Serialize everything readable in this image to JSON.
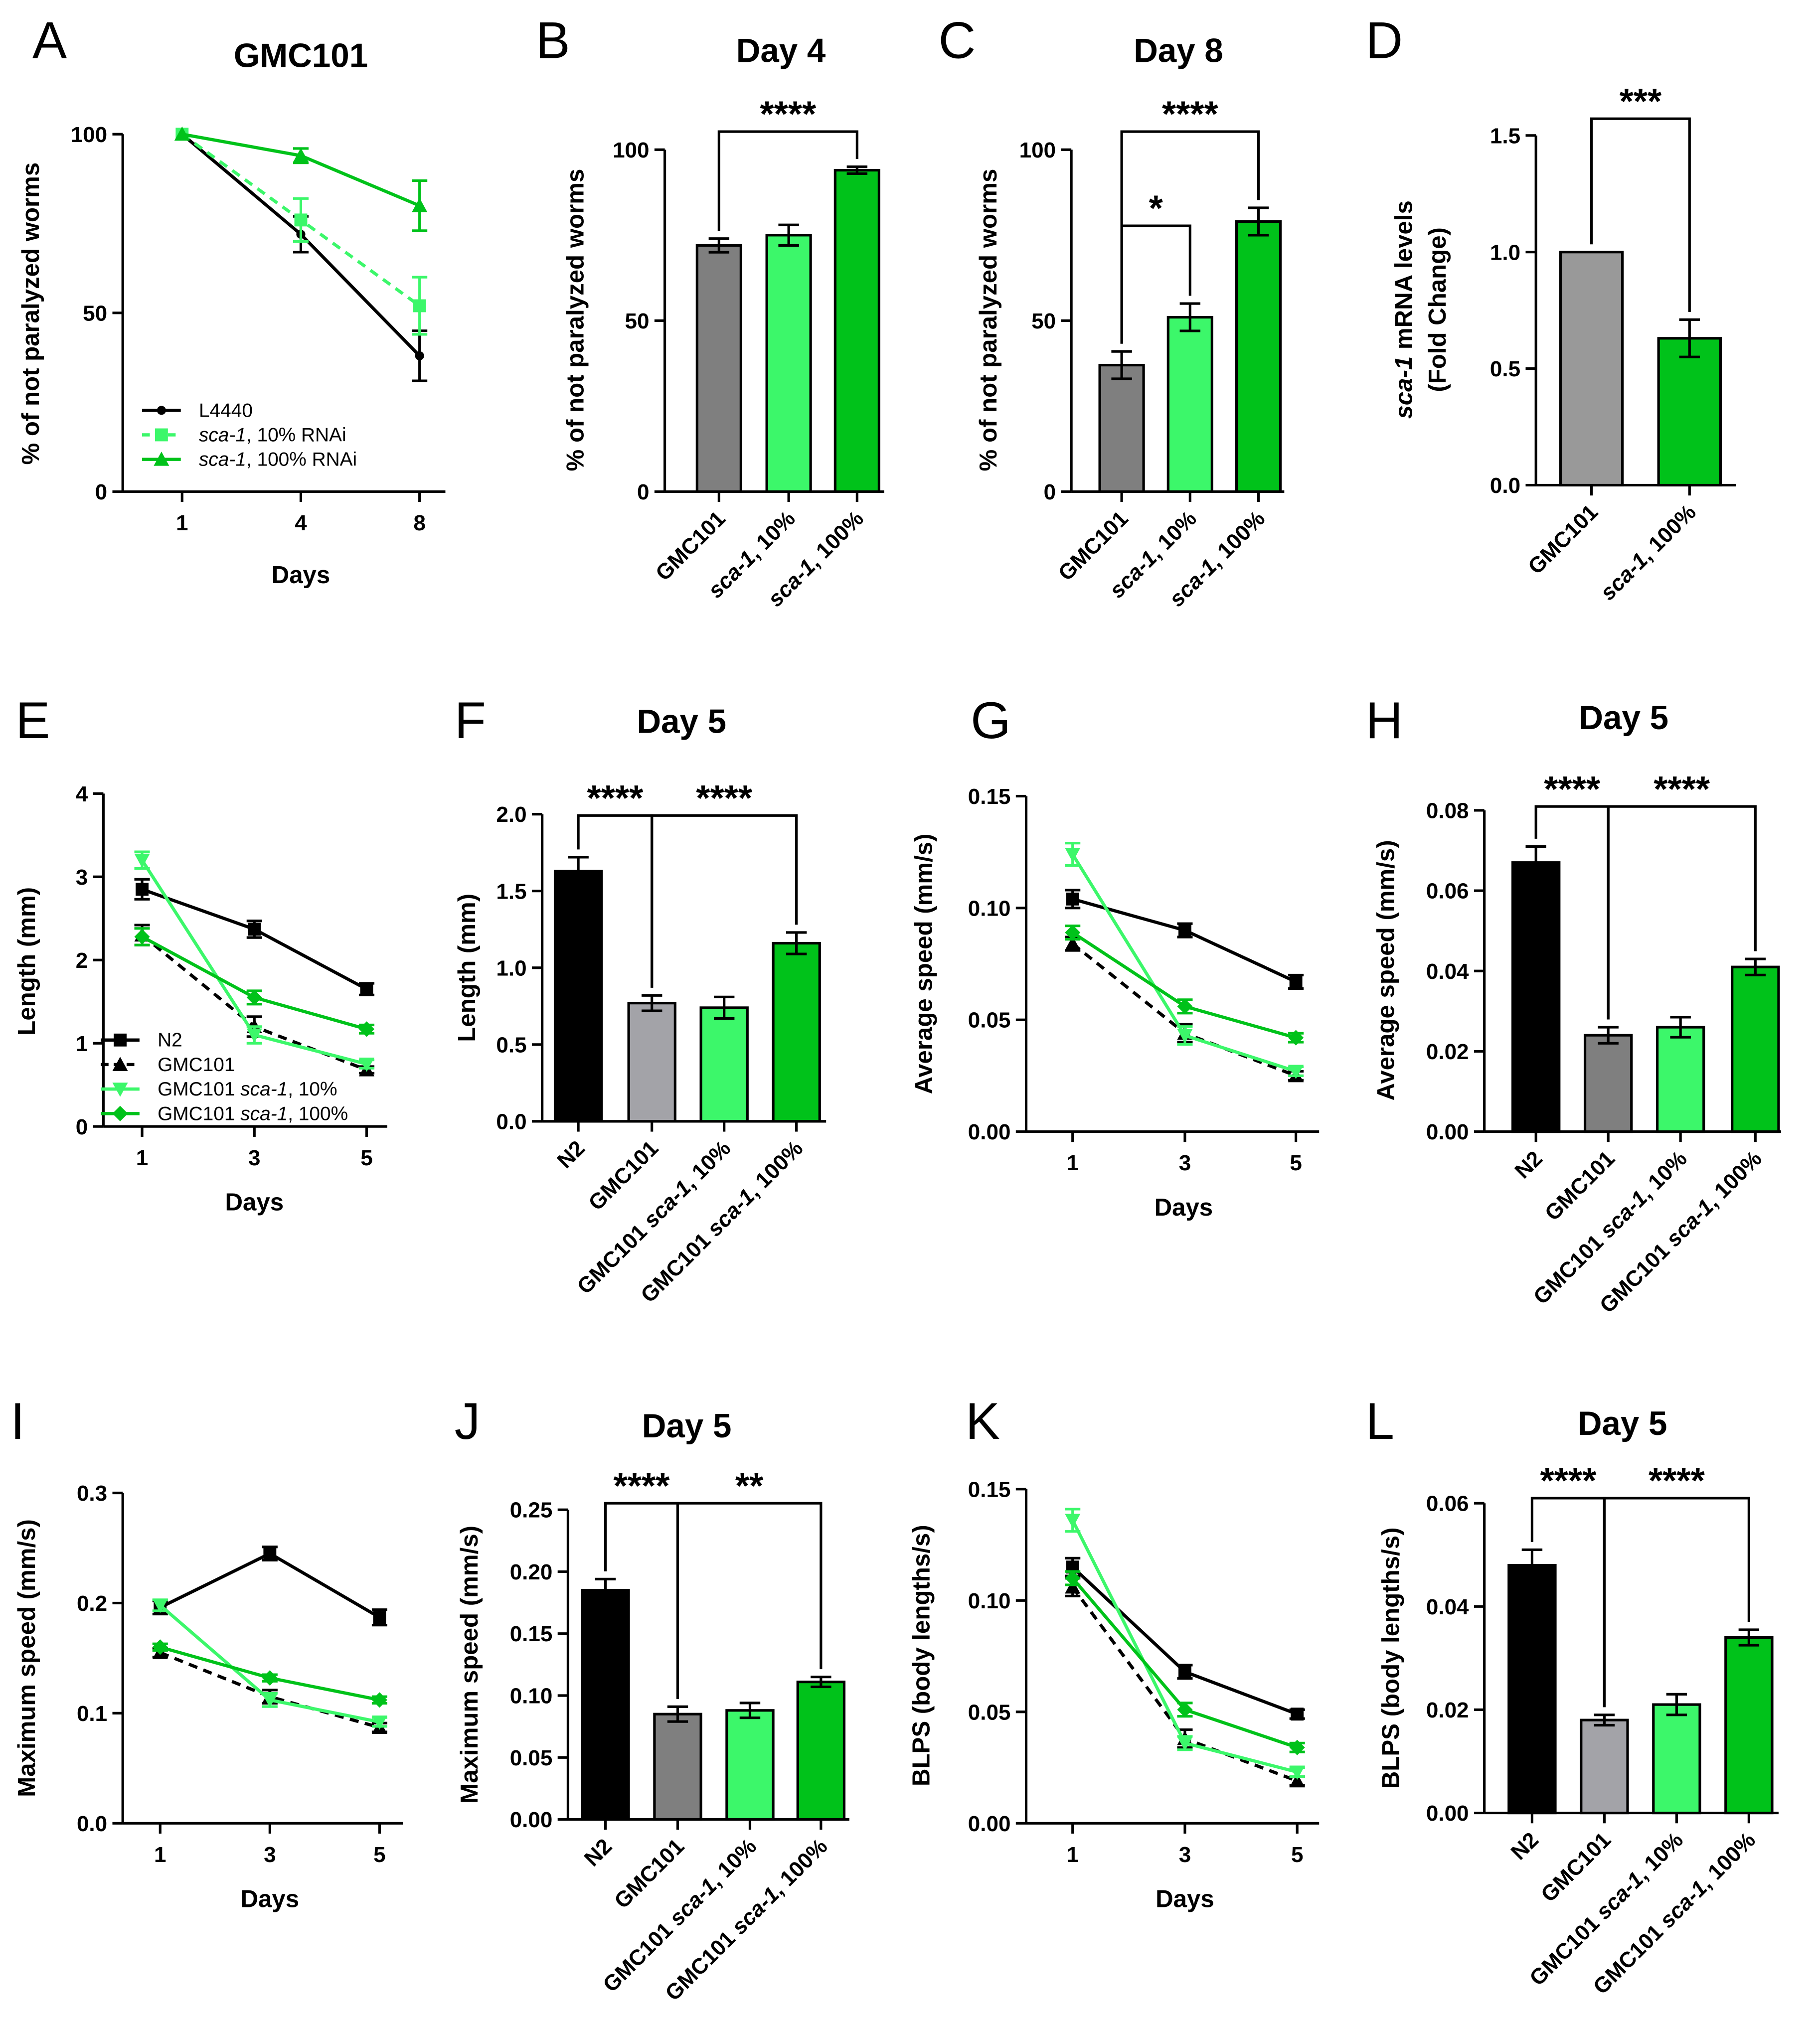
{
  "colors": {
    "black": "#000000",
    "gray": "#7f7f7f",
    "lightgray": "#a3a3a8",
    "lightgreen": "#3cf76a",
    "green": "#00c21a",
    "diagray": "#999999"
  },
  "chart_data": [
    {
      "panel": "A",
      "type": "line",
      "title": "GMC101",
      "xlabel": "Days",
      "ylabel": "% of not paralyzed worms",
      "categories": [
        "1",
        "4",
        "8"
      ],
      "ylim": [
        0,
        100
      ],
      "yticks": [
        "0",
        "50",
        "100"
      ],
      "series": [
        {
          "name": "L4440",
          "color": "black",
          "marker": "circle",
          "dash": false,
          "values": [
            100,
            72,
            38
          ],
          "errors": [
            0,
            5,
            7
          ]
        },
        {
          "name": "sca-1, 10% RNAi",
          "color": "lightgreen",
          "marker": "square",
          "dash": true,
          "values": [
            100,
            76,
            52
          ],
          "errors": [
            0,
            6,
            8
          ]
        },
        {
          "name": "sca-1, 100% RNAi",
          "color": "green",
          "marker": "triangle",
          "dash": false,
          "values": [
            100,
            94,
            80
          ],
          "errors": [
            0,
            2,
            7
          ]
        }
      ],
      "legend": "bottom-left"
    },
    {
      "panel": "B",
      "type": "bar",
      "title": "Day 4",
      "xlabel": "",
      "ylabel": "% of not paralyzed worms",
      "categories": [
        "GMC101",
        "sca-1, 10%",
        "sca-1, 100%"
      ],
      "bar_colors": [
        "gray",
        "lightgreen",
        "green"
      ],
      "ylim": [
        0,
        100
      ],
      "yticks": [
        "0",
        "50",
        "100"
      ],
      "values": [
        72,
        75,
        94
      ],
      "errors": [
        2,
        3,
        1
      ],
      "significance": [
        {
          "from": 0,
          "to": 2,
          "label": "****"
        }
      ]
    },
    {
      "panel": "C",
      "type": "bar",
      "title": "Day 8",
      "xlabel": "",
      "ylabel": "% of not paralyzed worms",
      "categories": [
        "GMC101",
        "sca-1, 10%",
        "sca-1, 100%"
      ],
      "bar_colors": [
        "gray",
        "lightgreen",
        "green"
      ],
      "ylim": [
        0,
        100
      ],
      "yticks": [
        "0",
        "50",
        "100"
      ],
      "values": [
        37,
        51,
        79
      ],
      "errors": [
        4,
        4,
        4
      ],
      "significance": [
        {
          "from": 0,
          "to": 2,
          "label": "****"
        },
        {
          "from": 0,
          "to": 1,
          "label": "*"
        }
      ]
    },
    {
      "panel": "D",
      "type": "bar",
      "title": "",
      "xlabel": "",
      "ylabel": "sca-1 mRNA levels",
      "ylabel2": "(Fold Change)",
      "categories": [
        "GMC101",
        "sca-1, 100%"
      ],
      "bar_colors": [
        "diagray",
        "green"
      ],
      "ylim": [
        0,
        1.5
      ],
      "yticks": [
        "0.0",
        "0.5",
        "1.0",
        "1.5"
      ],
      "values": [
        1.0,
        0.63
      ],
      "errors": [
        0,
        0.08
      ],
      "significance": [
        {
          "from": 0,
          "to": 1,
          "label": "***"
        }
      ]
    },
    {
      "panel": "E",
      "type": "line",
      "title": "",
      "xlabel": "Days",
      "ylabel": "Length (mm)",
      "categories": [
        "1",
        "3",
        "5"
      ],
      "ylim": [
        0,
        4
      ],
      "yticks": [
        "0",
        "1",
        "2",
        "3",
        "4"
      ],
      "series": [
        {
          "name": "N2",
          "color": "black",
          "marker": "square",
          "dash": false,
          "values": [
            2.85,
            2.37,
            1.65
          ],
          "errors": [
            0.12,
            0.1,
            0.07
          ]
        },
        {
          "name": "GMC101",
          "color": "black",
          "marker": "triangle",
          "dash": true,
          "values": [
            2.3,
            1.2,
            0.68
          ],
          "errors": [
            0.12,
            0.12,
            0.04
          ]
        },
        {
          "name": "GMC101 sca-1, 10%",
          "color": "lightgreen",
          "marker": "invtriangle",
          "dash": false,
          "values": [
            3.2,
            1.1,
            0.75
          ],
          "errors": [
            0.1,
            0.1,
            0.05
          ]
        },
        {
          "name": "GMC101 sca-1, 100%",
          "color": "green",
          "marker": "diamond",
          "dash": false,
          "values": [
            2.28,
            1.55,
            1.17
          ],
          "errors": [
            0.1,
            0.08,
            0.05
          ]
        }
      ],
      "legend": "bottom-left"
    },
    {
      "panel": "F",
      "type": "bar",
      "title": "Day 5",
      "xlabel": "",
      "ylabel": "Length (mm)",
      "categories": [
        "N2",
        "GMC101",
        "GMC101 sca-1, 10%",
        "GMC101 sca-1, 100%"
      ],
      "bar_colors": [
        "black",
        "lightgray",
        "lightgreen",
        "green"
      ],
      "ylim": [
        0,
        2.0
      ],
      "yticks": [
        "0.0",
        "0.5",
        "1.0",
        "1.5",
        "2.0"
      ],
      "values": [
        1.63,
        0.77,
        0.74,
        1.16
      ],
      "errors": [
        0.09,
        0.05,
        0.07,
        0.07
      ],
      "significance": [
        {
          "from": 0,
          "to": 1,
          "label": "****"
        },
        {
          "from": 1,
          "to": 3,
          "label": "****"
        }
      ]
    },
    {
      "panel": "G",
      "type": "line",
      "title": "",
      "xlabel": "Days",
      "ylabel": "Average speed (mm/s)",
      "categories": [
        "1",
        "3",
        "5"
      ],
      "ylim": [
        0,
        0.15
      ],
      "yticks": [
        "0.00",
        "0.05",
        "0.10",
        "0.15"
      ],
      "series": [
        {
          "name": "N2",
          "color": "black",
          "marker": "square",
          "dash": false,
          "values": [
            0.104,
            0.09,
            0.067
          ],
          "errors": [
            0.004,
            0.003,
            0.003
          ]
        },
        {
          "name": "GMC101",
          "color": "black",
          "marker": "triangle",
          "dash": true,
          "values": [
            0.084,
            0.044,
            0.025
          ],
          "errors": [
            0.003,
            0.004,
            0.002
          ]
        },
        {
          "name": "GMC101 sca-1, 10%",
          "color": "lightgreen",
          "marker": "invtriangle",
          "dash": false,
          "values": [
            0.124,
            0.043,
            0.027
          ],
          "errors": [
            0.005,
            0.004,
            0.002
          ]
        },
        {
          "name": "GMC101 sca-1, 100%",
          "color": "green",
          "marker": "diamond",
          "dash": false,
          "values": [
            0.089,
            0.056,
            0.042
          ],
          "errors": [
            0.003,
            0.003,
            0.002
          ]
        }
      ]
    },
    {
      "panel": "H",
      "type": "bar",
      "title": "Day 5",
      "xlabel": "",
      "ylabel": "Average speed (mm/s)",
      "categories": [
        "N2",
        "GMC101",
        "GMC101 sca-1, 10%",
        "GMC101 sca-1, 100%"
      ],
      "bar_colors": [
        "black",
        "gray",
        "lightgreen",
        "green"
      ],
      "ylim": [
        0,
        0.08
      ],
      "yticks": [
        "0.00",
        "0.02",
        "0.04",
        "0.06",
        "0.08"
      ],
      "values": [
        0.067,
        0.024,
        0.026,
        0.041
      ],
      "errors": [
        0.004,
        0.002,
        0.0025,
        0.002
      ],
      "significance": [
        {
          "from": 0,
          "to": 1,
          "label": "****"
        },
        {
          "from": 1,
          "to": 3,
          "label": "****"
        }
      ]
    },
    {
      "panel": "I",
      "type": "line",
      "title": "",
      "xlabel": "Days",
      "ylabel": "Maximum speed (mm/s)",
      "categories": [
        "1",
        "3",
        "5"
      ],
      "ylim": [
        0,
        0.3
      ],
      "yticks": [
        "0.0",
        "0.1",
        "0.2",
        "0.3"
      ],
      "series": [
        {
          "name": "N2",
          "color": "black",
          "marker": "square",
          "dash": false,
          "values": [
            0.196,
            0.245,
            0.187
          ],
          "errors": [
            0.006,
            0.006,
            0.007
          ]
        },
        {
          "name": "GMC101",
          "color": "black",
          "marker": "triangle",
          "dash": true,
          "values": [
            0.155,
            0.115,
            0.087
          ],
          "errors": [
            0.004,
            0.006,
            0.004
          ]
        },
        {
          "name": "GMC101 sca-1, 10%",
          "color": "lightgreen",
          "marker": "invtriangle",
          "dash": false,
          "values": [
            0.198,
            0.112,
            0.092
          ],
          "errors": [
            0.005,
            0.006,
            0.004
          ]
        },
        {
          "name": "GMC101 sca-1, 100%",
          "color": "green",
          "marker": "diamond",
          "dash": false,
          "values": [
            0.16,
            0.132,
            0.112
          ],
          "errors": [
            0.003,
            0.003,
            0.003
          ]
        }
      ]
    },
    {
      "panel": "J",
      "type": "bar",
      "title": "Day 5",
      "xlabel": "",
      "ylabel": "Maximum speed (mm/s)",
      "categories": [
        "N2",
        "GMC101",
        "GMC101 sca-1, 10%",
        "GMC101 sca-1, 100%"
      ],
      "bar_colors": [
        "black",
        "gray",
        "lightgreen",
        "green"
      ],
      "ylim": [
        0,
        0.25
      ],
      "yticks": [
        "0.00",
        "0.05",
        "0.10",
        "0.15",
        "0.20",
        "0.25"
      ],
      "values": [
        0.185,
        0.085,
        0.088,
        0.111
      ],
      "errors": [
        0.009,
        0.006,
        0.006,
        0.004
      ],
      "significance": [
        {
          "from": 0,
          "to": 1,
          "label": "****"
        },
        {
          "from": 1,
          "to": 3,
          "label": "**"
        }
      ]
    },
    {
      "panel": "K",
      "type": "line",
      "title": "",
      "xlabel": "Days",
      "ylabel": "BLPS (body lengths/s)",
      "categories": [
        "1",
        "3",
        "5"
      ],
      "ylim": [
        0,
        0.15
      ],
      "yticks": [
        "0.00",
        "0.05",
        "0.10",
        "0.15"
      ],
      "series": [
        {
          "name": "N2",
          "color": "black",
          "marker": "square",
          "dash": false,
          "values": [
            0.115,
            0.068,
            0.049
          ],
          "errors": [
            0.004,
            0.003,
            0.002
          ]
        },
        {
          "name": "GMC101",
          "color": "black",
          "marker": "triangle",
          "dash": true,
          "values": [
            0.106,
            0.038,
            0.019
          ],
          "errors": [
            0.004,
            0.004,
            0.002
          ]
        },
        {
          "name": "GMC101 sca-1, 10%",
          "color": "lightgreen",
          "marker": "invtriangle",
          "dash": false,
          "values": [
            0.136,
            0.036,
            0.023
          ],
          "errors": [
            0.005,
            0.003,
            0.002
          ]
        },
        {
          "name": "GMC101 sca-1, 100%",
          "color": "green",
          "marker": "diamond",
          "dash": false,
          "values": [
            0.11,
            0.051,
            0.034
          ],
          "errors": [
            0.003,
            0.003,
            0.002
          ]
        }
      ]
    },
    {
      "panel": "L",
      "type": "bar",
      "title": "Day 5",
      "xlabel": "",
      "ylabel": "BLPS (body lengths/s)",
      "categories": [
        "N2",
        "GMC101",
        "GMC101 sca-1, 10%",
        "GMC101 sca-1, 100%"
      ],
      "bar_colors": [
        "black",
        "lightgray",
        "lightgreen",
        "green"
      ],
      "ylim": [
        0,
        0.06
      ],
      "yticks": [
        "0.00",
        "0.02",
        "0.04",
        "0.06"
      ],
      "values": [
        0.048,
        0.018,
        0.021,
        0.034
      ],
      "errors": [
        0.003,
        0.001,
        0.002,
        0.0015
      ],
      "significance": [
        {
          "from": 0,
          "to": 1,
          "label": "****"
        },
        {
          "from": 1,
          "to": 3,
          "label": "****"
        }
      ]
    }
  ]
}
